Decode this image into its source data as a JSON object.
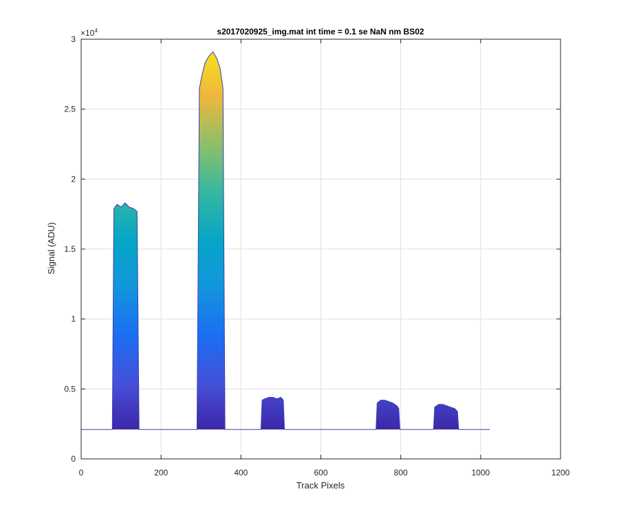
{
  "chart_data": {
    "type": "area",
    "title": "s2017020925_img.mat int time = 0.1 se  NaN nm BS02",
    "xlabel": "Track Pixels",
    "ylabel": "Signal (ADU)",
    "xlim": [
      0,
      1200
    ],
    "ylim": [
      0,
      30000
    ],
    "x_ticks": [
      0,
      200,
      400,
      600,
      800,
      1000,
      1200
    ],
    "y_ticks": [
      0,
      5000,
      10000,
      15000,
      20000,
      25000,
      30000
    ],
    "x_tick_labels": [
      "0",
      "200",
      "400",
      "600",
      "800",
      "1000",
      "1200"
    ],
    "y_tick_labels": [
      "0",
      "0.5",
      "1",
      "1.5",
      "2",
      "2.5",
      "3"
    ],
    "y_exponent_label": "×10",
    "y_exponent_power": "4",
    "grid": true,
    "colormap": "parula",
    "baseline": 2100,
    "series": [
      {
        "x": [
          0,
          78,
          82,
          90,
          100,
          110,
          120,
          130,
          140,
          145,
          150,
          290,
          296,
          303,
          310,
          320,
          330,
          340,
          348,
          355,
          360,
          366,
          450,
          453,
          460,
          470,
          480,
          490,
          500,
          506,
          509,
          738,
          741,
          750,
          760,
          770,
          780,
          790,
          795,
          798,
          882,
          885,
          895,
          905,
          915,
          925,
          935,
          942,
          945,
          1023
        ],
        "y": [
          2100,
          2100,
          17900,
          18200,
          18000,
          18300,
          18000,
          17900,
          17700,
          2100,
          2100,
          2100,
          26500,
          27500,
          28300,
          28800,
          29100,
          28600,
          27900,
          26500,
          2100,
          2100,
          2100,
          4200,
          4300,
          4400,
          4400,
          4300,
          4400,
          4200,
          2100,
          2100,
          4000,
          4200,
          4200,
          4100,
          4000,
          3800,
          3600,
          2100,
          2100,
          3700,
          3900,
          3900,
          3800,
          3700,
          3600,
          3400,
          2100,
          2100
        ]
      }
    ]
  }
}
